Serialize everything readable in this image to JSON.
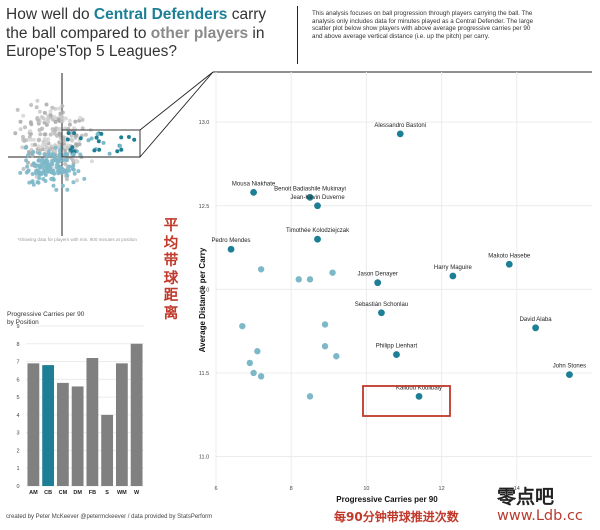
{
  "header": {
    "title_part1": "How well do ",
    "title_hl1": "Central Defenders",
    "title_part2": " carry the ball compared to ",
    "title_hl2": "other players",
    "title_part3": " in Europe'sTop 5 Leagues?",
    "description": "This analysis focuses on ball progression through players carrying the ball. The analysis only includes data for minutes played as a Central Defender. The large scatter plot below show players with above average progressive carries per 90 and above average vertical distance (i.e. up the pitch) per carry."
  },
  "annotations": {
    "chinese_y": "平均带球距离",
    "chinese_x": "每90分钟带球推进次数",
    "watermark_cn": "零点吧",
    "watermark_url": "www.Ldb.cc",
    "footer": "created by Peter McKeever @petermckeever / data provided by StatsPerform"
  },
  "colors": {
    "teal_dark": "#1d7f95",
    "teal_light": "#7db8c9",
    "gray_bar": "#808080",
    "highlight_box": "#c0392b"
  },
  "chart_data": [
    {
      "id": "main-scatter",
      "type": "scatter",
      "xlabel": "Progressive Carries per 90",
      "ylabel": "Average Distance per Carry",
      "xlim": [
        6,
        16
      ],
      "ylim": [
        10.8,
        13.3
      ],
      "x_ticks": [
        6,
        8,
        10,
        12,
        14
      ],
      "y_ticks": [
        11.0,
        11.5,
        12.0,
        12.5,
        13.0
      ],
      "grid": true,
      "highlight": "Kalidou Koulibaly",
      "labeled_points": [
        {
          "name": "Alessandro Bastoni",
          "x": 10.9,
          "y": 12.93
        },
        {
          "name": "Mousa Niakhate",
          "x": 7.0,
          "y": 12.58
        },
        {
          "name": "Benoit Badiashile Mukinayi",
          "x": 8.5,
          "y": 12.55
        },
        {
          "name": "Jean-Kévin Duverne",
          "x": 8.7,
          "y": 12.5
        },
        {
          "name": "Pedro Mendes",
          "x": 6.4,
          "y": 12.24
        },
        {
          "name": "Timothée Kolodziejczak",
          "x": 8.7,
          "y": 12.3
        },
        {
          "name": "Harry Maguire",
          "x": 12.3,
          "y": 12.08
        },
        {
          "name": "Jason Denayer",
          "x": 10.3,
          "y": 12.04
        },
        {
          "name": "Makoto Hasebe",
          "x": 13.8,
          "y": 12.15
        },
        {
          "name": "Sebastián Schonlau",
          "x": 10.4,
          "y": 11.86
        },
        {
          "name": "David Alaba",
          "x": 14.5,
          "y": 11.77
        },
        {
          "name": "Philipp Lienhart",
          "x": 10.8,
          "y": 11.61
        },
        {
          "name": "John Stones",
          "x": 15.4,
          "y": 11.49
        },
        {
          "name": "Kalidou Koulibaly",
          "x": 11.4,
          "y": 11.36
        }
      ],
      "other_points": [
        {
          "x": 6.7,
          "y": 11.78
        },
        {
          "x": 7.2,
          "y": 12.12
        },
        {
          "x": 8.2,
          "y": 12.06
        },
        {
          "x": 8.5,
          "y": 12.06
        },
        {
          "x": 9.1,
          "y": 12.1
        },
        {
          "x": 8.9,
          "y": 11.79
        },
        {
          "x": 8.9,
          "y": 11.66
        },
        {
          "x": 9.2,
          "y": 11.6
        },
        {
          "x": 7.1,
          "y": 11.63
        },
        {
          "x": 6.9,
          "y": 11.56
        },
        {
          "x": 7.0,
          "y": 11.5
        },
        {
          "x": 7.2,
          "y": 11.48
        },
        {
          "x": 8.5,
          "y": 11.36
        }
      ]
    },
    {
      "id": "position-bars",
      "type": "bar",
      "title": "Progressive Carries per 90 by Position",
      "categories": [
        "AM",
        "CB",
        "CM",
        "DM",
        "FB",
        "S",
        "WM",
        "W"
      ],
      "values": [
        6.9,
        6.8,
        5.8,
        5.6,
        7.2,
        4.0,
        6.9,
        8.0
      ],
      "highlight": "CB",
      "ylim": [
        0,
        9
      ],
      "y_ticks": [
        0,
        1,
        2,
        3,
        4,
        5,
        6,
        7,
        8,
        9
      ]
    },
    {
      "id": "overview-scatter",
      "type": "scatter",
      "note": "*showing data for players with min. 900 minutes at position"
    }
  ]
}
